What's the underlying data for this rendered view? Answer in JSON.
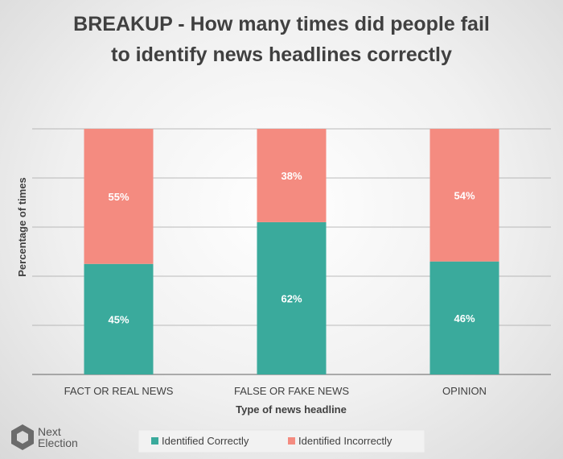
{
  "chart_data": {
    "type": "bar",
    "stacked": true,
    "title_lines": [
      "BREAKUP - How many times did people fail",
      "to identify news headlines correctly"
    ],
    "categories": [
      "FACT OR REAL NEWS",
      "FALSE OR FAKE NEWS",
      "OPINION"
    ],
    "xlabel": "Type of news headline",
    "ylabel": "Percentage of times",
    "ylim": [
      0,
      100
    ],
    "grid": true,
    "legend_position": "bottom",
    "series": [
      {
        "name": "Identified Correctly",
        "values": [
          45,
          62,
          46
        ],
        "labels": [
          "45%",
          "62%",
          "46%"
        ],
        "color": "#3aaa9c"
      },
      {
        "name": "Identified Incorrectly",
        "values": [
          55,
          38,
          54
        ],
        "labels": [
          "55%",
          "38%",
          "54%"
        ],
        "color": "#f48b80"
      }
    ]
  },
  "logo": {
    "line1": "Next",
    "line2": "Election"
  }
}
